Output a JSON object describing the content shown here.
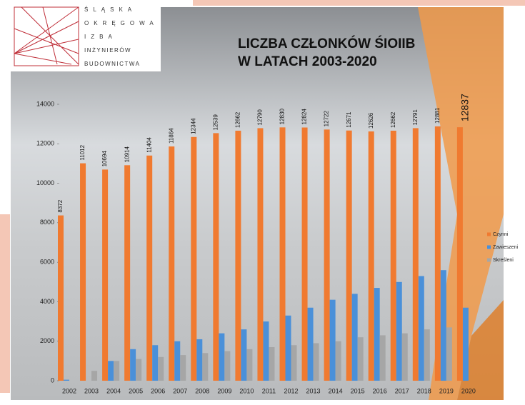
{
  "logo": {
    "lines": [
      "ŚLĄSKA",
      "OKRĘGOWA",
      "IZBA",
      "INŻYNIERÓW",
      "BUDOWNICTWA"
    ]
  },
  "chart_data": {
    "type": "bar",
    "title": [
      "LICZBA CZŁONKÓW ŚIOIIB",
      "W LATACH 2003-2020"
    ],
    "categories": [
      "2002",
      "2003",
      "2004",
      "2005",
      "2006",
      "2007",
      "2008",
      "2009",
      "2010",
      "2011",
      "2012",
      "2013",
      "2014",
      "2015",
      "2016",
      "2017",
      "2018",
      "2019",
      "2020"
    ],
    "series": [
      {
        "name": "Czynni",
        "color": "#f07a30",
        "values": [
          8372,
          11012,
          10694,
          10914,
          11404,
          11864,
          12344,
          12539,
          12662,
          12790,
          12830,
          12824,
          12722,
          12671,
          12626,
          12662,
          12791,
          12881,
          12837
        ]
      },
      {
        "name": "Zawieszeni",
        "color": "#4a90d9",
        "values": [
          50,
          0,
          1000,
          1600,
          1800,
          2000,
          2100,
          2400,
          2600,
          3000,
          3300,
          3700,
          4100,
          4400,
          4700,
          5000,
          5300,
          5600,
          3700
        ]
      },
      {
        "name": "Skreśleni",
        "color": "#a6a6a6",
        "values": [
          0,
          500,
          1000,
          1100,
          1200,
          1300,
          1400,
          1500,
          1600,
          1700,
          1800,
          1900,
          2000,
          2200,
          2300,
          2400,
          2600,
          2700,
          null
        ]
      }
    ],
    "ylim": [
      0,
      14000
    ],
    "yticks": [
      0,
      2000,
      4000,
      6000,
      8000,
      10000,
      12000,
      14000
    ],
    "legend": "right"
  }
}
